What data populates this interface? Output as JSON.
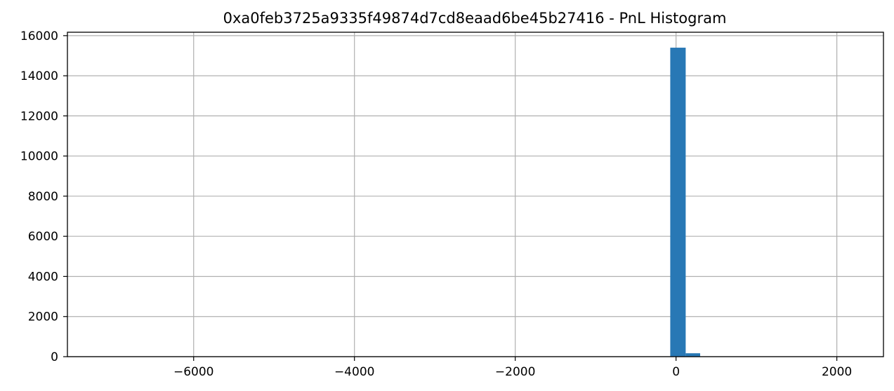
{
  "chart_data": {
    "type": "bar",
    "title": "0xa0feb3725a9335f49874d7cd8eaad6be45b27416 - PnL Histogram",
    "xlabel": "",
    "ylabel": "",
    "xlim": [
      -7570,
      2580
    ],
    "ylim": [
      0,
      16170
    ],
    "grid": true,
    "bar_color": "#2878b5",
    "x_ticks": [
      {
        "value": -6000,
        "label": "−6000"
      },
      {
        "value": -4000,
        "label": "−4000"
      },
      {
        "value": -2000,
        "label": "−2000"
      },
      {
        "value": 0,
        "label": "0"
      },
      {
        "value": 2000,
        "label": "2000"
      }
    ],
    "y_ticks": [
      {
        "value": 0,
        "label": "0"
      },
      {
        "value": 2000,
        "label": "2000"
      },
      {
        "value": 4000,
        "label": "4000"
      },
      {
        "value": 6000,
        "label": "6000"
      },
      {
        "value": 8000,
        "label": "8000"
      },
      {
        "value": 10000,
        "label": "10000"
      },
      {
        "value": 12000,
        "label": "12000"
      },
      {
        "value": 14000,
        "label": "14000"
      },
      {
        "value": 16000,
        "label": "16000"
      }
    ],
    "bins": [
      {
        "x0": -72,
        "x1": 120,
        "count": 15400
      },
      {
        "x0": 120,
        "x1": 300,
        "count": 170
      }
    ]
  }
}
